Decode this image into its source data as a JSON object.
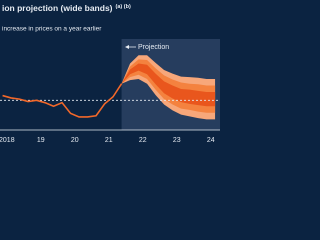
{
  "chart_data": {
    "type": "fan",
    "title": "ion projection (wide bands)",
    "title_note": "(a) (b)",
    "subtitle": "increase in prices on a year earlier",
    "projection_label": "Projection",
    "projection_start": 2021.875,
    "target": 2,
    "xlim": [
      2018.3,
      2024.77
    ],
    "ylim": [
      -0.5,
      7.5
    ],
    "xticks": [
      {
        "value": 2018.5,
        "label": "2018"
      },
      {
        "value": 2019.5,
        "label": "19"
      },
      {
        "value": 2020.5,
        "label": "20"
      },
      {
        "value": 2021.5,
        "label": "21"
      },
      {
        "value": 2022.5,
        "label": "22"
      },
      {
        "value": 2023.5,
        "label": "23"
      },
      {
        "value": 2024.5,
        "label": "24"
      }
    ],
    "history": {
      "color": "#f2682a",
      "x": [
        2018.375,
        2018.625,
        2018.875,
        2019.125,
        2019.375,
        2019.625,
        2019.875,
        2020.125,
        2020.375,
        2020.625,
        2020.875,
        2021.125,
        2021.375,
        2021.625,
        2021.875
      ],
      "values": [
        2.4,
        2.2,
        2.1,
        1.9,
        2.0,
        1.8,
        1.5,
        1.8,
        0.9,
        0.6,
        0.6,
        0.7,
        1.7,
        2.3,
        3.4
      ]
    },
    "fan_x": [
      2021.875,
      2022.125,
      2022.375,
      2022.625,
      2022.875,
      2023.125,
      2023.375,
      2023.625,
      2023.875,
      2024.125,
      2024.375,
      2024.625
    ],
    "fan": [
      {
        "color": "#f7a77a",
        "low": [
          3.4,
          3.7,
          3.8,
          3.4,
          2.45,
          1.65,
          1.15,
          0.8,
          0.65,
          0.5,
          0.4,
          0.4
        ],
        "high": [
          3.4,
          5.1,
          5.8,
          5.8,
          5.15,
          4.55,
          4.25,
          4.0,
          3.95,
          3.9,
          3.8,
          3.8
        ]
      },
      {
        "color": "#f4823f",
        "low": [
          3.4,
          3.95,
          4.15,
          3.8,
          2.9,
          2.1,
          1.65,
          1.3,
          1.2,
          1.05,
          0.95,
          0.95
        ],
        "high": [
          3.4,
          4.85,
          5.45,
          5.4,
          4.7,
          4.1,
          3.75,
          3.5,
          3.4,
          3.35,
          3.25,
          3.25
        ]
      },
      {
        "color": "#e9561d",
        "low": [
          3.4,
          4.2,
          4.5,
          4.2,
          3.35,
          2.6,
          2.15,
          1.85,
          1.7,
          1.6,
          1.5,
          1.5
        ],
        "high": [
          3.4,
          4.6,
          5.1,
          5.0,
          4.25,
          3.6,
          3.25,
          2.95,
          2.9,
          2.8,
          2.7,
          2.7
        ]
      }
    ]
  }
}
